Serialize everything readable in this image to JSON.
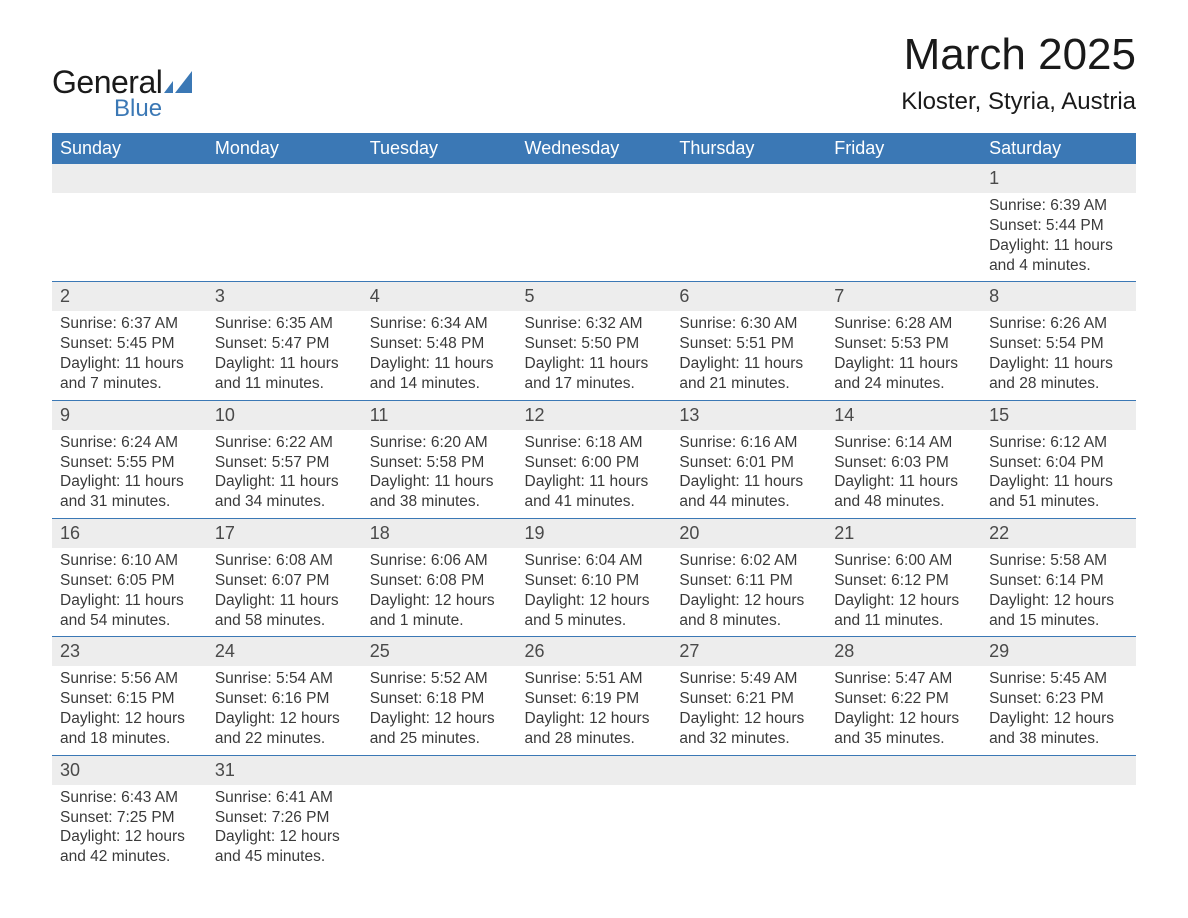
{
  "logo": {
    "word1": "General",
    "word2": "Blue"
  },
  "header": {
    "month_title": "March 2025",
    "location": "Kloster, Styria, Austria"
  },
  "colors": {
    "header_bg": "#3b78b5",
    "header_fg": "#ffffff",
    "row_sep": "#3b78b5",
    "daynum_bg": "#ededed",
    "text": "#3a3a3a",
    "logo_blue": "#3b78b5"
  },
  "calendar": {
    "day_names": [
      "Sunday",
      "Monday",
      "Tuesday",
      "Wednesday",
      "Thursday",
      "Friday",
      "Saturday"
    ],
    "weeks": [
      [
        null,
        null,
        null,
        null,
        null,
        null,
        {
          "n": "1",
          "sunrise": "Sunrise: 6:39 AM",
          "sunset": "Sunset: 5:44 PM",
          "daylight": "Daylight: 11 hours and 4 minutes."
        }
      ],
      [
        {
          "n": "2",
          "sunrise": "Sunrise: 6:37 AM",
          "sunset": "Sunset: 5:45 PM",
          "daylight": "Daylight: 11 hours and 7 minutes."
        },
        {
          "n": "3",
          "sunrise": "Sunrise: 6:35 AM",
          "sunset": "Sunset: 5:47 PM",
          "daylight": "Daylight: 11 hours and 11 minutes."
        },
        {
          "n": "4",
          "sunrise": "Sunrise: 6:34 AM",
          "sunset": "Sunset: 5:48 PM",
          "daylight": "Daylight: 11 hours and 14 minutes."
        },
        {
          "n": "5",
          "sunrise": "Sunrise: 6:32 AM",
          "sunset": "Sunset: 5:50 PM",
          "daylight": "Daylight: 11 hours and 17 minutes."
        },
        {
          "n": "6",
          "sunrise": "Sunrise: 6:30 AM",
          "sunset": "Sunset: 5:51 PM",
          "daylight": "Daylight: 11 hours and 21 minutes."
        },
        {
          "n": "7",
          "sunrise": "Sunrise: 6:28 AM",
          "sunset": "Sunset: 5:53 PM",
          "daylight": "Daylight: 11 hours and 24 minutes."
        },
        {
          "n": "8",
          "sunrise": "Sunrise: 6:26 AM",
          "sunset": "Sunset: 5:54 PM",
          "daylight": "Daylight: 11 hours and 28 minutes."
        }
      ],
      [
        {
          "n": "9",
          "sunrise": "Sunrise: 6:24 AM",
          "sunset": "Sunset: 5:55 PM",
          "daylight": "Daylight: 11 hours and 31 minutes."
        },
        {
          "n": "10",
          "sunrise": "Sunrise: 6:22 AM",
          "sunset": "Sunset: 5:57 PM",
          "daylight": "Daylight: 11 hours and 34 minutes."
        },
        {
          "n": "11",
          "sunrise": "Sunrise: 6:20 AM",
          "sunset": "Sunset: 5:58 PM",
          "daylight": "Daylight: 11 hours and 38 minutes."
        },
        {
          "n": "12",
          "sunrise": "Sunrise: 6:18 AM",
          "sunset": "Sunset: 6:00 PM",
          "daylight": "Daylight: 11 hours and 41 minutes."
        },
        {
          "n": "13",
          "sunrise": "Sunrise: 6:16 AM",
          "sunset": "Sunset: 6:01 PM",
          "daylight": "Daylight: 11 hours and 44 minutes."
        },
        {
          "n": "14",
          "sunrise": "Sunrise: 6:14 AM",
          "sunset": "Sunset: 6:03 PM",
          "daylight": "Daylight: 11 hours and 48 minutes."
        },
        {
          "n": "15",
          "sunrise": "Sunrise: 6:12 AM",
          "sunset": "Sunset: 6:04 PM",
          "daylight": "Daylight: 11 hours and 51 minutes."
        }
      ],
      [
        {
          "n": "16",
          "sunrise": "Sunrise: 6:10 AM",
          "sunset": "Sunset: 6:05 PM",
          "daylight": "Daylight: 11 hours and 54 minutes."
        },
        {
          "n": "17",
          "sunrise": "Sunrise: 6:08 AM",
          "sunset": "Sunset: 6:07 PM",
          "daylight": "Daylight: 11 hours and 58 minutes."
        },
        {
          "n": "18",
          "sunrise": "Sunrise: 6:06 AM",
          "sunset": "Sunset: 6:08 PM",
          "daylight": "Daylight: 12 hours and 1 minute."
        },
        {
          "n": "19",
          "sunrise": "Sunrise: 6:04 AM",
          "sunset": "Sunset: 6:10 PM",
          "daylight": "Daylight: 12 hours and 5 minutes."
        },
        {
          "n": "20",
          "sunrise": "Sunrise: 6:02 AM",
          "sunset": "Sunset: 6:11 PM",
          "daylight": "Daylight: 12 hours and 8 minutes."
        },
        {
          "n": "21",
          "sunrise": "Sunrise: 6:00 AM",
          "sunset": "Sunset: 6:12 PM",
          "daylight": "Daylight: 12 hours and 11 minutes."
        },
        {
          "n": "22",
          "sunrise": "Sunrise: 5:58 AM",
          "sunset": "Sunset: 6:14 PM",
          "daylight": "Daylight: 12 hours and 15 minutes."
        }
      ],
      [
        {
          "n": "23",
          "sunrise": "Sunrise: 5:56 AM",
          "sunset": "Sunset: 6:15 PM",
          "daylight": "Daylight: 12 hours and 18 minutes."
        },
        {
          "n": "24",
          "sunrise": "Sunrise: 5:54 AM",
          "sunset": "Sunset: 6:16 PM",
          "daylight": "Daylight: 12 hours and 22 minutes."
        },
        {
          "n": "25",
          "sunrise": "Sunrise: 5:52 AM",
          "sunset": "Sunset: 6:18 PM",
          "daylight": "Daylight: 12 hours and 25 minutes."
        },
        {
          "n": "26",
          "sunrise": "Sunrise: 5:51 AM",
          "sunset": "Sunset: 6:19 PM",
          "daylight": "Daylight: 12 hours and 28 minutes."
        },
        {
          "n": "27",
          "sunrise": "Sunrise: 5:49 AM",
          "sunset": "Sunset: 6:21 PM",
          "daylight": "Daylight: 12 hours and 32 minutes."
        },
        {
          "n": "28",
          "sunrise": "Sunrise: 5:47 AM",
          "sunset": "Sunset: 6:22 PM",
          "daylight": "Daylight: 12 hours and 35 minutes."
        },
        {
          "n": "29",
          "sunrise": "Sunrise: 5:45 AM",
          "sunset": "Sunset: 6:23 PM",
          "daylight": "Daylight: 12 hours and 38 minutes."
        }
      ],
      [
        {
          "n": "30",
          "sunrise": "Sunrise: 6:43 AM",
          "sunset": "Sunset: 7:25 PM",
          "daylight": "Daylight: 12 hours and 42 minutes."
        },
        {
          "n": "31",
          "sunrise": "Sunrise: 6:41 AM",
          "sunset": "Sunset: 7:26 PM",
          "daylight": "Daylight: 12 hours and 45 minutes."
        },
        null,
        null,
        null,
        null,
        null
      ]
    ]
  }
}
